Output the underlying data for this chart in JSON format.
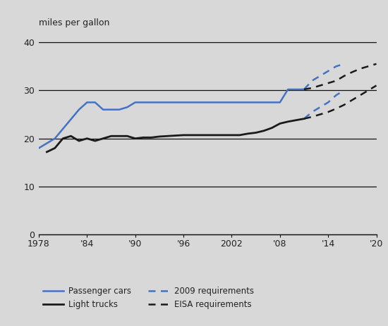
{
  "background_color": "#d8d8d8",
  "plot_bg_color": "#d8d8d8",
  "ylabel_text": "miles per gallon",
  "ylim": [
    0,
    42
  ],
  "xlim": [
    1978,
    2020
  ],
  "yticks": [
    0,
    10,
    20,
    30,
    40
  ],
  "xtick_labels": [
    "1978",
    "'84",
    "'90",
    "'96",
    "2002",
    "'08",
    "'14",
    "'20"
  ],
  "xtick_positions": [
    1978,
    1984,
    1990,
    1996,
    2002,
    2008,
    2014,
    2020
  ],
  "passenger_cars_x": [
    1978,
    1979,
    1980,
    1981,
    1982,
    1983,
    1984,
    1985,
    1986,
    1987,
    1988,
    1989,
    1990,
    1991,
    1992,
    1993,
    1994,
    1995,
    1996,
    1997,
    1998,
    1999,
    2000,
    2001,
    2002,
    2003,
    2004,
    2005,
    2006,
    2007,
    2008,
    2009,
    2011
  ],
  "passenger_cars_y": [
    18.0,
    19.0,
    20.0,
    22.0,
    24.0,
    26.0,
    27.5,
    27.5,
    26.0,
    26.0,
    26.0,
    26.5,
    27.5,
    27.5,
    27.5,
    27.5,
    27.5,
    27.5,
    27.5,
    27.5,
    27.5,
    27.5,
    27.5,
    27.5,
    27.5,
    27.5,
    27.5,
    27.5,
    27.5,
    27.5,
    27.5,
    30.2,
    30.2
  ],
  "light_trucks_x": [
    1979,
    1980,
    1981,
    1982,
    1983,
    1984,
    1985,
    1986,
    1987,
    1988,
    1989,
    1990,
    1991,
    1992,
    1993,
    1994,
    1995,
    1996,
    1997,
    1998,
    1999,
    2000,
    2001,
    2002,
    2003,
    2004,
    2005,
    2006,
    2007,
    2008,
    2009,
    2011
  ],
  "light_trucks_y": [
    17.2,
    18.0,
    20.0,
    20.5,
    19.5,
    20.0,
    19.5,
    20.0,
    20.5,
    20.5,
    20.5,
    20.0,
    20.2,
    20.2,
    20.4,
    20.5,
    20.6,
    20.7,
    20.7,
    20.7,
    20.7,
    20.7,
    20.7,
    20.7,
    20.7,
    21.0,
    21.2,
    21.6,
    22.2,
    23.1,
    23.5,
    24.1
  ],
  "req2009_cars_x": [
    2011,
    2012,
    2013,
    2014,
    2015,
    2016
  ],
  "req2009_cars_y": [
    30.2,
    32.0,
    33.0,
    34.0,
    35.0,
    35.5
  ],
  "req2009_trucks_x": [
    2011,
    2012,
    2013,
    2014,
    2015,
    2016
  ],
  "req2009_trucks_y": [
    24.1,
    25.5,
    26.5,
    27.5,
    29.0,
    30.0
  ],
  "eisa_cars_x": [
    2011,
    2012,
    2013,
    2014,
    2015,
    2016,
    2017,
    2018,
    2019,
    2020
  ],
  "eisa_cars_y": [
    30.2,
    30.5,
    31.0,
    31.5,
    32.0,
    33.0,
    33.8,
    34.5,
    35.0,
    35.5
  ],
  "eisa_trucks_x": [
    2011,
    2012,
    2013,
    2014,
    2015,
    2016,
    2017,
    2018,
    2019,
    2020
  ],
  "eisa_trucks_y": [
    24.1,
    24.5,
    25.0,
    25.5,
    26.2,
    27.0,
    28.0,
    29.0,
    30.0,
    31.0
  ],
  "car_color": "#4472c4",
  "truck_color": "#1a1a1a",
  "req2009_color": "#4472c4",
  "eisa_color": "#1a1a1a",
  "grid_color": "#111111",
  "text_color": "#222222"
}
